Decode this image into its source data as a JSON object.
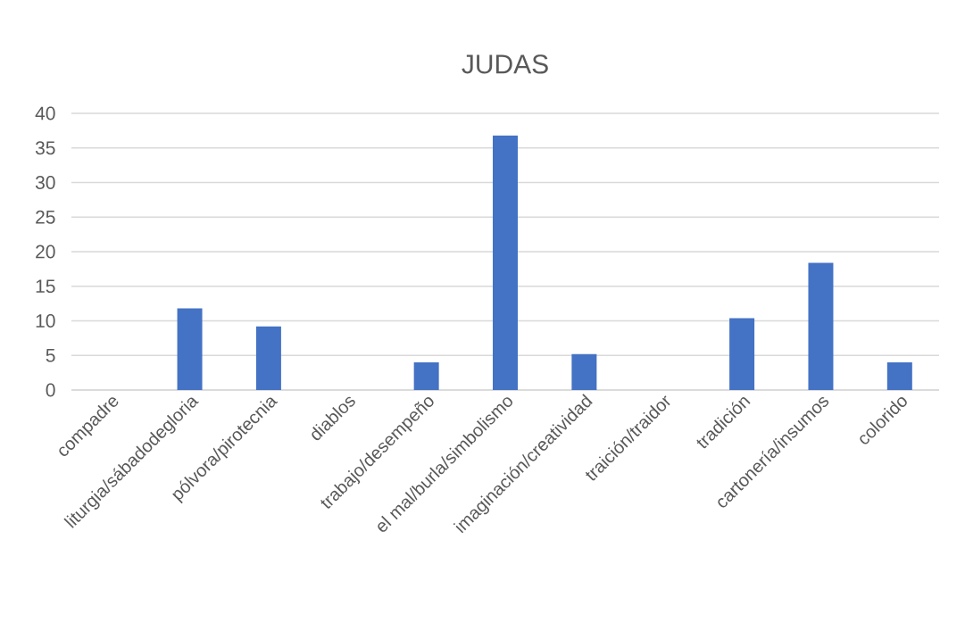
{
  "chart_data": {
    "type": "bar",
    "title": "JUDAS",
    "categories": [
      "compadre",
      "liturgia/sábadodegloria",
      "pólvora/pirotecnia",
      "diablos",
      "trabajo/desempeño",
      "el mal/burla/simbolismo",
      "imaginación/creatividad",
      "traición/traidor",
      "tradición",
      "cartonería/insumos",
      "colorido"
    ],
    "values": [
      0,
      11.8,
      9.2,
      0,
      4.0,
      36.8,
      5.2,
      0,
      10.4,
      18.4,
      4.0
    ],
    "color": "#4472c4",
    "ylim": [
      0,
      40
    ],
    "yticks": [
      0,
      5,
      10,
      15,
      20,
      25,
      30,
      35,
      40
    ],
    "grid": "y"
  }
}
